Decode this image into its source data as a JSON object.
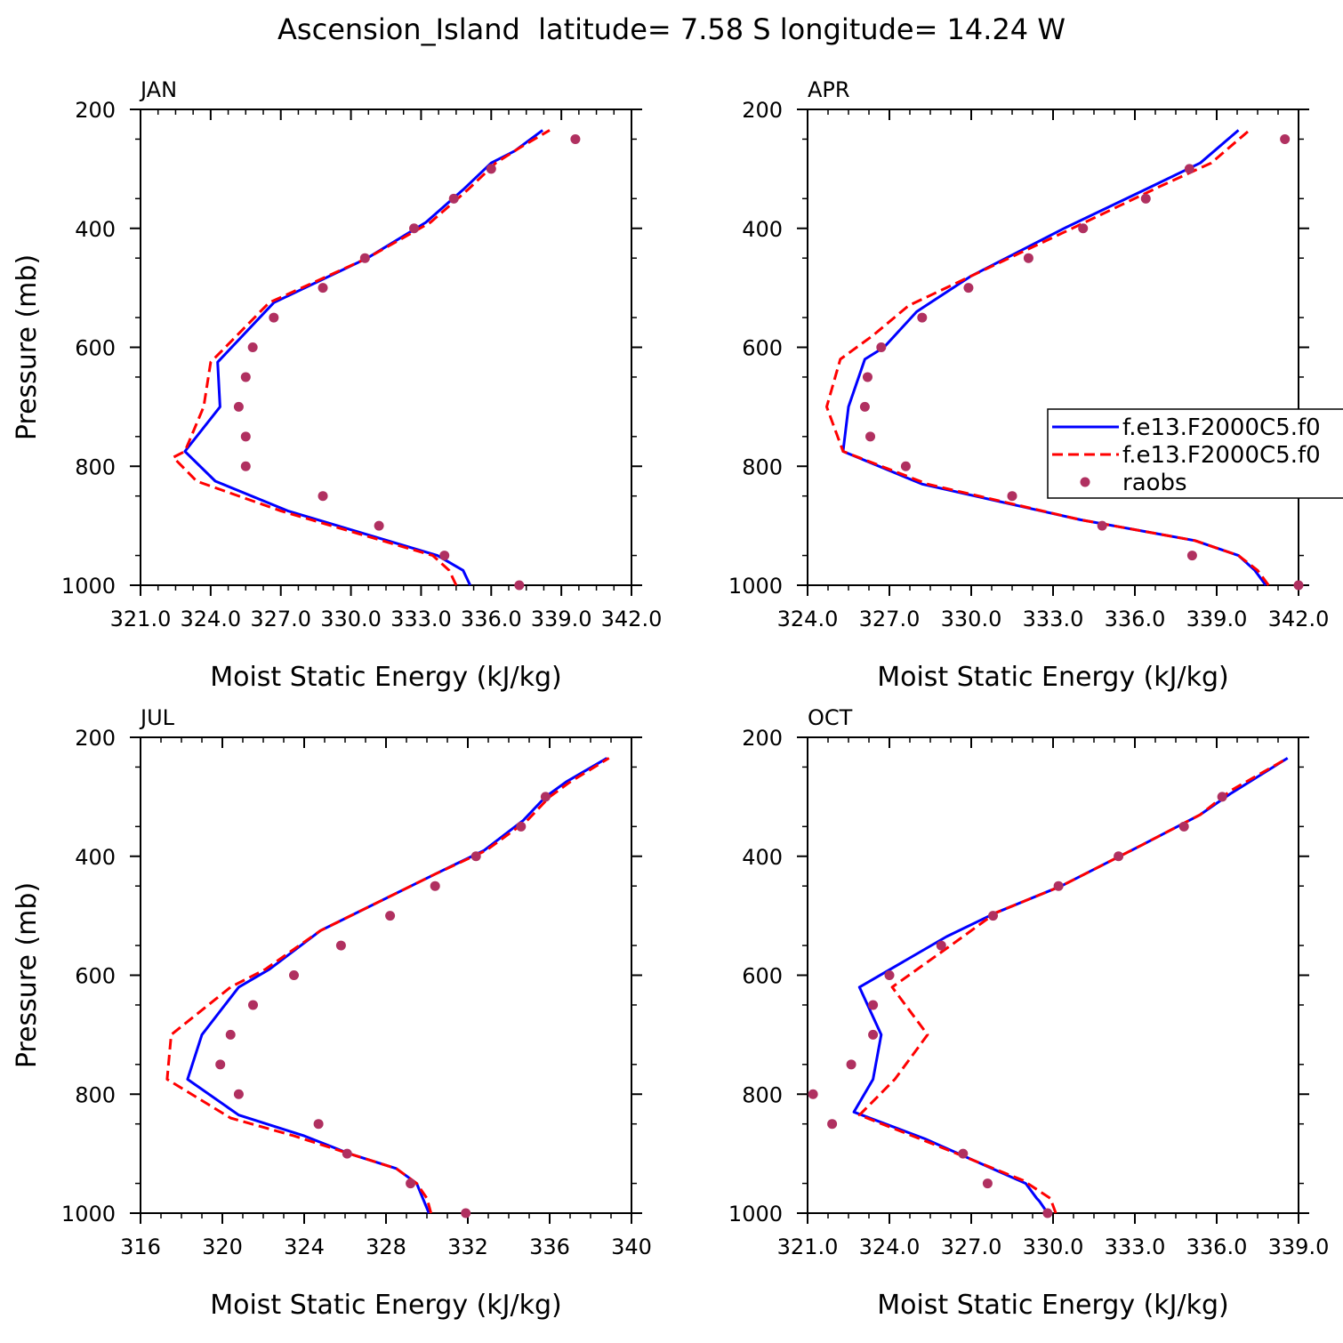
{
  "page": {
    "title": "Ascension_Island  latitude= 7.58 S longitude= 14.24 W"
  },
  "legend": {
    "entries": [
      {
        "label": "f.e13.F2000C5.f0",
        "style": "solid",
        "color": "#0000ff"
      },
      {
        "label": "f.e13.F2000C5.f0",
        "style": "dashed",
        "color": "#ff0000"
      },
      {
        "label": "raobs",
        "style": "marker",
        "color": "#b03060"
      }
    ]
  },
  "colors": {
    "model_solid": "#0000ff",
    "model_dashed": "#ff0000",
    "raobs": "#b03060"
  },
  "chart_data": [
    {
      "type": "line",
      "panel": "JAN",
      "xlabel": "Moist Static Energy (kJ/kg)",
      "ylabel": "Pressure (mb)",
      "xlim": [
        321.0,
        342.0
      ],
      "ylim": [
        1000,
        200
      ],
      "xticks": [
        "321.0",
        "324.0",
        "327.0",
        "330.0",
        "333.0",
        "336.0",
        "339.0",
        "342.0"
      ],
      "yticks": [
        "200",
        "400",
        "600",
        "800",
        "1000"
      ],
      "grid": false,
      "series": [
        {
          "name": "f.e13.F2000C5.f0",
          "style": "solid",
          "points": [
            [
              335.1,
              1000
            ],
            [
              334.8,
              975
            ],
            [
              333.7,
              950
            ],
            [
              327.3,
              875
            ],
            [
              324.2,
              825
            ],
            [
              322.9,
              775
            ],
            [
              324.4,
              700
            ],
            [
              324.3,
              625
            ],
            [
              326.7,
              525
            ],
            [
              330.7,
              450
            ],
            [
              333.2,
              390
            ],
            [
              334.8,
              335
            ],
            [
              336.0,
              290
            ],
            [
              337.0,
              270
            ],
            [
              338.2,
              235
            ]
          ]
        },
        {
          "name": "f.e13.F2000C5.f0",
          "style": "dashed",
          "points": [
            [
              334.5,
              1000
            ],
            [
              334.2,
              975
            ],
            [
              333.5,
              950
            ],
            [
              327.0,
              875
            ],
            [
              323.4,
              825
            ],
            [
              322.4,
              785
            ],
            [
              322.9,
              775
            ],
            [
              323.7,
              700
            ],
            [
              324.0,
              625
            ],
            [
              326.5,
              525
            ],
            [
              330.7,
              450
            ],
            [
              333.4,
              390
            ],
            [
              335.0,
              335
            ],
            [
              336.2,
              290
            ],
            [
              337.2,
              265
            ],
            [
              338.5,
              235
            ]
          ]
        },
        {
          "name": "raobs",
          "style": "marker",
          "points": [
            [
              337.2,
              1000
            ],
            [
              334.0,
              950
            ],
            [
              331.2,
              900
            ],
            [
              328.8,
              850
            ],
            [
              325.5,
              800
            ],
            [
              325.5,
              750
            ],
            [
              325.2,
              700
            ],
            [
              325.5,
              650
            ],
            [
              325.8,
              600
            ],
            [
              326.7,
              550
            ],
            [
              328.8,
              500
            ],
            [
              330.6,
              450
            ],
            [
              332.7,
              400
            ],
            [
              334.4,
              350
            ],
            [
              336.0,
              300
            ],
            [
              339.6,
              250
            ]
          ]
        }
      ]
    },
    {
      "type": "line",
      "panel": "APR",
      "xlabel": "Moist Static Energy (kJ/kg)",
      "ylabel": "",
      "xlim": [
        324.0,
        342.0
      ],
      "ylim": [
        1000,
        200
      ],
      "xticks": [
        "324.0",
        "327.0",
        "330.0",
        "333.0",
        "336.0",
        "339.0",
        "342.0"
      ],
      "yticks": [
        "200",
        "400",
        "600",
        "800",
        "1000"
      ],
      "grid": false,
      "series": [
        {
          "name": "f.e13.F2000C5.f0",
          "style": "solid",
          "points": [
            [
              340.8,
              1000
            ],
            [
              340.4,
              975
            ],
            [
              339.8,
              950
            ],
            [
              338.2,
              925
            ],
            [
              334.0,
              890
            ],
            [
              328.2,
              830
            ],
            [
              325.3,
              775
            ],
            [
              325.5,
              700
            ],
            [
              326.1,
              620
            ],
            [
              326.8,
              600
            ],
            [
              328.0,
              540
            ],
            [
              330.0,
              480
            ],
            [
              333.4,
              400
            ],
            [
              336.6,
              330
            ],
            [
              338.4,
              290
            ],
            [
              339.8,
              235
            ]
          ]
        },
        {
          "name": "f.e13.F2000C5.f0",
          "style": "dashed",
          "points": [
            [
              340.9,
              1000
            ],
            [
              340.5,
              975
            ],
            [
              339.8,
              950
            ],
            [
              338.2,
              925
            ],
            [
              334.0,
              890
            ],
            [
              328.4,
              830
            ],
            [
              325.3,
              775
            ],
            [
              324.7,
              700
            ],
            [
              325.2,
              620
            ],
            [
              326.4,
              580
            ],
            [
              327.7,
              530
            ],
            [
              330.0,
              480
            ],
            [
              333.7,
              400
            ],
            [
              336.9,
              330
            ],
            [
              338.8,
              290
            ],
            [
              340.2,
              235
            ]
          ]
        },
        {
          "name": "raobs",
          "style": "marker",
          "points": [
            [
              342.0,
              1000
            ],
            [
              338.1,
              950
            ],
            [
              334.8,
              900
            ],
            [
              331.5,
              850
            ],
            [
              327.6,
              800
            ],
            [
              326.3,
              750
            ],
            [
              326.1,
              700
            ],
            [
              326.2,
              650
            ],
            [
              326.7,
              600
            ],
            [
              328.2,
              550
            ],
            [
              329.9,
              500
            ],
            [
              332.1,
              450
            ],
            [
              334.1,
              400
            ],
            [
              336.4,
              350
            ],
            [
              338.0,
              300
            ],
            [
              341.5,
              250
            ]
          ]
        }
      ]
    },
    {
      "type": "line",
      "panel": "JUL",
      "xlabel": "Moist Static Energy (kJ/kg)",
      "ylabel": "Pressure (mb)",
      "xlim": [
        316,
        340
      ],
      "ylim": [
        1000,
        200
      ],
      "xticks": [
        "316",
        "320",
        "324",
        "328",
        "332",
        "336",
        "340"
      ],
      "yticks": [
        "200",
        "400",
        "600",
        "800",
        "1000"
      ],
      "grid": false,
      "series": [
        {
          "name": "f.e13.F2000C5.f0",
          "style": "solid",
          "points": [
            [
              330.1,
              1000
            ],
            [
              329.8,
              975
            ],
            [
              329.5,
              950
            ],
            [
              328.5,
              925
            ],
            [
              326.2,
              900
            ],
            [
              324.0,
              870
            ],
            [
              320.8,
              835
            ],
            [
              318.3,
              775
            ],
            [
              319.0,
              700
            ],
            [
              320.8,
              620
            ],
            [
              322.3,
              590
            ],
            [
              324.8,
              525
            ],
            [
              330.4,
              430
            ],
            [
              332.8,
              390
            ],
            [
              334.7,
              340
            ],
            [
              335.8,
              300
            ],
            [
              336.8,
              275
            ],
            [
              338.8,
              235
            ]
          ]
        },
        {
          "name": "f.e13.F2000C5.f0",
          "style": "dashed",
          "points": [
            [
              330.2,
              1000
            ],
            [
              330.0,
              975
            ],
            [
              329.5,
              950
            ],
            [
              328.5,
              925
            ],
            [
              326.2,
              900
            ],
            [
              323.5,
              870
            ],
            [
              320.4,
              840
            ],
            [
              317.3,
              775
            ],
            [
              317.5,
              700
            ],
            [
              320.4,
              620
            ],
            [
              322.1,
              590
            ],
            [
              324.8,
              525
            ],
            [
              330.4,
              430
            ],
            [
              332.9,
              390
            ],
            [
              334.9,
              340
            ],
            [
              336.0,
              300
            ],
            [
              337.0,
              275
            ],
            [
              338.9,
              235
            ]
          ]
        },
        {
          "name": "raobs",
          "style": "marker",
          "points": [
            [
              331.9,
              1000
            ],
            [
              329.2,
              950
            ],
            [
              326.1,
              900
            ],
            [
              324.7,
              850
            ],
            [
              320.8,
              800
            ],
            [
              319.9,
              750
            ],
            [
              320.4,
              700
            ],
            [
              321.5,
              650
            ],
            [
              323.5,
              600
            ],
            [
              325.8,
              550
            ],
            [
              328.2,
              500
            ],
            [
              330.4,
              450
            ],
            [
              332.4,
              400
            ],
            [
              334.6,
              350
            ],
            [
              335.8,
              300
            ]
          ]
        }
      ]
    },
    {
      "type": "line",
      "panel": "OCT",
      "xlabel": "Moist Static Energy (kJ/kg)",
      "ylabel": "",
      "xlim": [
        321.0,
        339.0
      ],
      "ylim": [
        1000,
        200
      ],
      "xticks": [
        "321.0",
        "324.0",
        "327.0",
        "330.0",
        "333.0",
        "336.0",
        "339.0"
      ],
      "yticks": [
        "200",
        "400",
        "600",
        "800",
        "1000"
      ],
      "grid": false,
      "series": [
        {
          "name": "f.e13.F2000C5.f0",
          "style": "solid",
          "points": [
            [
              329.8,
              1000
            ],
            [
              329.5,
              980
            ],
            [
              329.4,
              975
            ],
            [
              329.0,
              950
            ],
            [
              325.3,
              875
            ],
            [
              322.7,
              830
            ],
            [
              323.4,
              775
            ],
            [
              323.7,
              700
            ],
            [
              322.9,
              620
            ],
            [
              326.1,
              535
            ],
            [
              327.9,
              495
            ],
            [
              330.3,
              450
            ],
            [
              333.3,
              380
            ],
            [
              335.4,
              330
            ],
            [
              336.5,
              295
            ],
            [
              338.6,
              235
            ]
          ]
        },
        {
          "name": "f.e13.F2000C5.f0",
          "style": "dashed",
          "points": [
            [
              330.1,
              1000
            ],
            [
              329.9,
              975
            ],
            [
              328.9,
              945
            ],
            [
              325.4,
              880
            ],
            [
              322.9,
              835
            ],
            [
              324.2,
              775
            ],
            [
              325.4,
              700
            ],
            [
              324.1,
              620
            ],
            [
              326.4,
              545
            ],
            [
              327.9,
              495
            ],
            [
              330.3,
              450
            ],
            [
              333.3,
              380
            ],
            [
              335.4,
              330
            ],
            [
              336.5,
              290
            ],
            [
              338.6,
              235
            ]
          ]
        },
        {
          "name": "raobs",
          "style": "marker",
          "points": [
            [
              329.8,
              1000
            ],
            [
              327.6,
              950
            ],
            [
              326.7,
              900
            ],
            [
              321.9,
              850
            ],
            [
              321.2,
              800
            ],
            [
              322.6,
              750
            ],
            [
              323.4,
              700
            ],
            [
              323.4,
              650
            ],
            [
              324.0,
              600
            ],
            [
              325.9,
              550
            ],
            [
              327.8,
              500
            ],
            [
              330.2,
              450
            ],
            [
              332.4,
              400
            ],
            [
              334.8,
              350
            ],
            [
              336.2,
              300
            ]
          ]
        }
      ]
    }
  ]
}
